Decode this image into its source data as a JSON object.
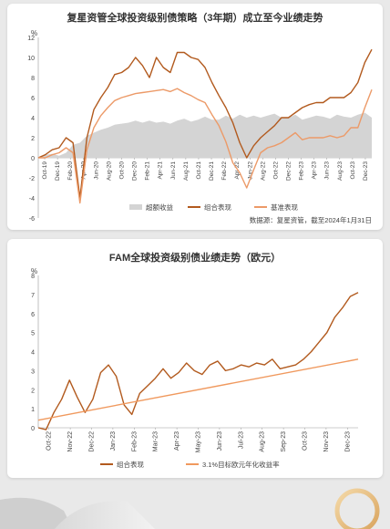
{
  "chart_data": [
    {
      "type": "line",
      "title": "复星资管全球投资级别债策略（3年期）成立至今业绩走势",
      "ylabel": "%",
      "ylim": [
        -6,
        12
      ],
      "yticks": [
        -6,
        -4,
        -2,
        0,
        2,
        4,
        6,
        8,
        10,
        12
      ],
      "xticks": [
        "Oct-19",
        "Dec-19",
        "Feb-20",
        "Apr-20",
        "Jun-20",
        "Aug-20",
        "Oct-20",
        "Dec-20",
        "Feb-21",
        "Apr-21",
        "Jun-21",
        "Aug-21",
        "Oct-21",
        "Dec-21",
        "Feb-22",
        "Apr-22",
        "Jun-22",
        "Aug-22",
        "Oct-22",
        "Dec-22",
        "Feb-23",
        "Apr-23",
        "Jun-23",
        "Aug-23",
        "Oct-23",
        "Dec-23"
      ],
      "legend_position": "bottom",
      "source": "数据源：复星资管，截至2024年1月31日",
      "series": [
        {
          "name": "超额收益",
          "kind": "area",
          "color": "#d4d4d4",
          "values": [
            0,
            0.3,
            0.4,
            0.2,
            0.5,
            1.3,
            1.5,
            2.2,
            2.5,
            2.8,
            3.0,
            3.3,
            3.4,
            3.5,
            3.7,
            3.5,
            3.7,
            3.5,
            3.6,
            3.4,
            3.7,
            3.9,
            3.6,
            3.8,
            4.1,
            3.8,
            3.8,
            4.2,
            3.9,
            4.3,
            4.0,
            4.2,
            4.0,
            4.2,
            4.4,
            4.0,
            4.0,
            4.3,
            3.8,
            4.0,
            4.2,
            4.1,
            3.9,
            4.3,
            4.1,
            4.0,
            4.3,
            4.5,
            4.0
          ]
        },
        {
          "name": "组合表现",
          "kind": "line",
          "color": "#b25a1e",
          "values": [
            0,
            0.3,
            0.8,
            1.0,
            2.0,
            1.5,
            -4.0,
            2.0,
            4.8,
            6.0,
            7.0,
            8.3,
            8.5,
            9.0,
            10.0,
            9.2,
            8.0,
            10.0,
            9.0,
            8.5,
            10.5,
            10.5,
            10.0,
            9.8,
            9.0,
            7.5,
            6.2,
            5.0,
            3.5,
            1.5,
            0.0,
            1.2,
            2.0,
            2.6,
            3.2,
            4.0,
            4.0,
            4.5,
            5.0,
            5.3,
            5.5,
            5.5,
            6.0,
            6.0,
            6.0,
            6.5,
            7.5,
            9.5,
            10.8
          ]
        },
        {
          "name": "基准表现",
          "kind": "line",
          "color": "#ec9a68",
          "values": [
            0,
            0.0,
            0.3,
            0.5,
            1.0,
            0.5,
            -4.5,
            0.8,
            3.0,
            4.2,
            5.0,
            5.7,
            6.0,
            6.2,
            6.4,
            6.5,
            6.6,
            6.7,
            6.8,
            6.6,
            6.9,
            6.5,
            6.2,
            5.8,
            5.5,
            4.3,
            3.2,
            1.6,
            -0.5,
            -1.5,
            -3.0,
            -1.2,
            0.5,
            1.0,
            1.2,
            1.5,
            2.0,
            2.5,
            1.8,
            2.0,
            2.0,
            2.0,
            2.2,
            2.0,
            2.2,
            3.0,
            3.0,
            5.0,
            6.8
          ]
        }
      ]
    },
    {
      "type": "line",
      "title": "FAM全球投资级别债业绩走势（欧元）",
      "ylabel": "%",
      "ylim": [
        0,
        8
      ],
      "yticks": [
        0,
        1,
        2,
        3,
        4,
        5,
        6,
        7,
        8
      ],
      "xticks": [
        "Oct-22",
        "Nov-22",
        "Dec-22",
        "Jan-23",
        "Feb-23",
        "Mar-23",
        "Apr-23",
        "May-23",
        "Jun-23",
        "Jul-23",
        "Aug-23",
        "Sep-23",
        "Oct-23",
        "Nov-23",
        "Dec-23"
      ],
      "legend_position": "bottom",
      "series": [
        {
          "name": "组合表现",
          "kind": "line",
          "color": "#b25a1e",
          "values": [
            0,
            -0.1,
            0.8,
            1.5,
            2.5,
            1.6,
            0.8,
            1.5,
            2.9,
            3.3,
            2.7,
            1.2,
            0.7,
            1.8,
            2.2,
            2.6,
            3.1,
            2.6,
            2.9,
            3.4,
            3.0,
            2.8,
            3.3,
            3.5,
            3.0,
            3.1,
            3.3,
            3.2,
            3.4,
            3.3,
            3.6,
            3.1,
            3.2,
            3.3,
            3.6,
            4.0,
            4.5,
            5.0,
            5.8,
            6.3,
            6.9,
            7.1
          ]
        },
        {
          "name": "3.1%目标欧元年化收益率",
          "kind": "line",
          "color": "#f0995e",
          "values": [
            0.4,
            3.6
          ]
        }
      ]
    }
  ]
}
